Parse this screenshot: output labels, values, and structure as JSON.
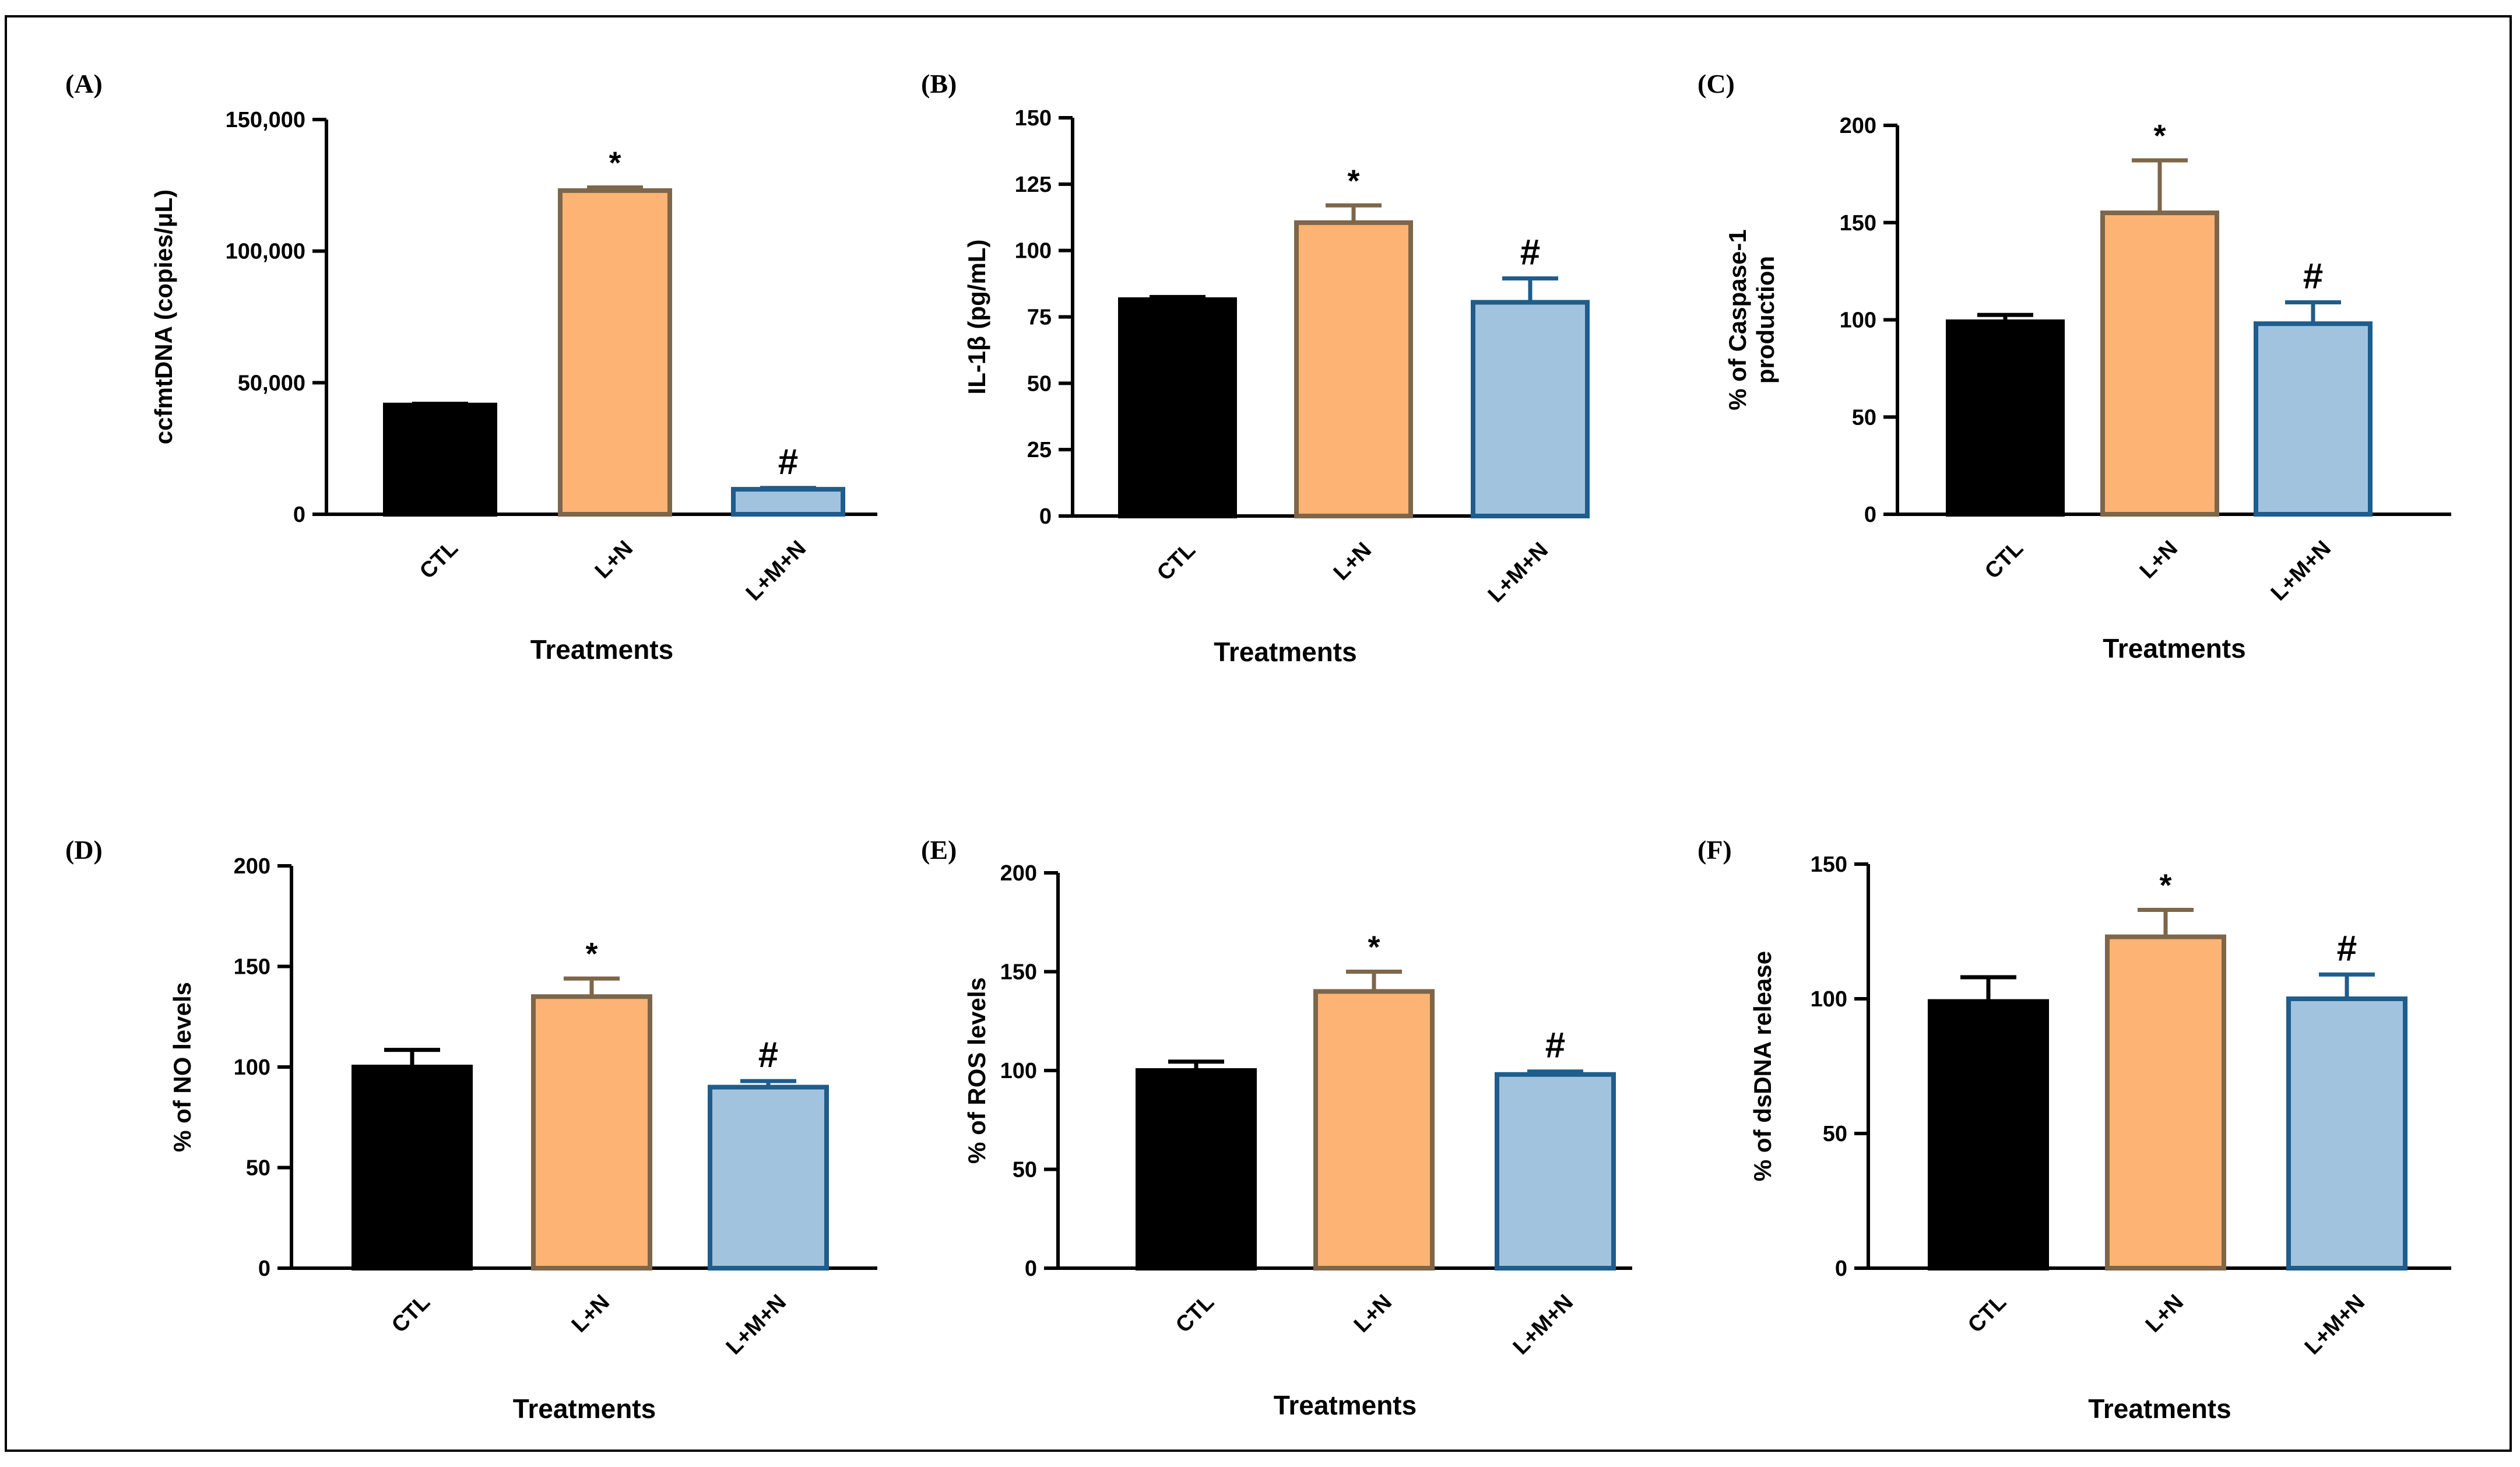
{
  "colors": {
    "CTL": "#000000",
    "L+N": "#fdb374",
    "L+M+N": "#a2c3de",
    "stroke_CTL": "#000000",
    "stroke_L+N": "#7d6649",
    "stroke_L+M+N": "#1e5d8c"
  },
  "chart_data": [
    {
      "panel": "(A)",
      "type": "bar",
      "categories": [
        "CTL",
        "L+N",
        "L+M+N"
      ],
      "values": [
        41500,
        123000,
        9500
      ],
      "errors": [
        500,
        1200,
        500
      ],
      "marks": [
        "",
        "*",
        "#"
      ],
      "ylabel": "ccfmtDNA (copies/μL)",
      "xlabel": "Treatments",
      "ylim": [
        0,
        150000
      ],
      "yticks": [
        0,
        50000,
        100000,
        150000
      ],
      "yticklabels": [
        "0",
        "50,000",
        "100,000",
        "150,000"
      ]
    },
    {
      "panel": "(B)",
      "type": "bar",
      "categories": [
        "CTL",
        "L+N",
        "L+M+N"
      ],
      "values": [
        81.5,
        110.5,
        80.5
      ],
      "errors": [
        1,
        6.5,
        9
      ],
      "marks": [
        "",
        "*",
        "#"
      ],
      "ylabel": "IL-1β (pg/mL)",
      "xlabel": "Treatments",
      "ylim": [
        0,
        150
      ],
      "yticks": [
        0,
        25,
        50,
        75,
        100,
        125,
        150
      ],
      "yticklabels": [
        "0",
        "25",
        "50",
        "75",
        "100",
        "125",
        "150"
      ]
    },
    {
      "panel": "(C)",
      "type": "bar",
      "categories": [
        "CTL",
        "L+N",
        "L+M+N"
      ],
      "values": [
        99,
        155,
        98
      ],
      "errors": [
        3.5,
        27,
        11
      ],
      "marks": [
        "",
        "*",
        "#"
      ],
      "ylabel": [
        "% of Caspase-1",
        "production"
      ],
      "xlabel": "Treatments",
      "ylim": [
        0,
        200
      ],
      "yticks": [
        0,
        50,
        100,
        150,
        200
      ],
      "yticklabels": [
        "0",
        "50",
        "100",
        "150",
        "200"
      ]
    },
    {
      "panel": "(D)",
      "type": "bar",
      "categories": [
        "CTL",
        "L+N",
        "L+M+N"
      ],
      "values": [
        100,
        135,
        90
      ],
      "errors": [
        8.5,
        9,
        3
      ],
      "marks": [
        "",
        "*",
        "#"
      ],
      "ylabel": "% of NO levels",
      "xlabel": "Treatments",
      "ylim": [
        0,
        200
      ],
      "yticks": [
        0,
        50,
        100,
        150,
        200
      ],
      "yticklabels": [
        "0",
        "50",
        "100",
        "150",
        "200"
      ]
    },
    {
      "panel": "(E)",
      "type": "bar",
      "categories": [
        "CTL",
        "L+N",
        "L+M+N"
      ],
      "values": [
        100,
        140,
        98
      ],
      "errors": [
        4.5,
        10,
        1.5
      ],
      "marks": [
        "",
        "*",
        "#"
      ],
      "ylabel": "% of ROS levels",
      "xlabel": "Treatments",
      "ylim": [
        0,
        200
      ],
      "yticks": [
        0,
        50,
        100,
        150,
        200
      ],
      "yticklabels": [
        "0",
        "50",
        "100",
        "150",
        "200"
      ]
    },
    {
      "panel": "(F)",
      "type": "bar",
      "categories": [
        "CTL",
        "L+N",
        "L+M+N"
      ],
      "values": [
        99,
        123,
        100
      ],
      "errors": [
        9,
        10,
        9
      ],
      "marks": [
        "",
        "*",
        "#"
      ],
      "ylabel": "% of dsDNA release",
      "xlabel": "Treatments",
      "ylim": [
        0,
        150
      ],
      "yticks": [
        0,
        50,
        100,
        150
      ],
      "yticklabels": [
        "0",
        "50",
        "100",
        "150"
      ]
    }
  ]
}
